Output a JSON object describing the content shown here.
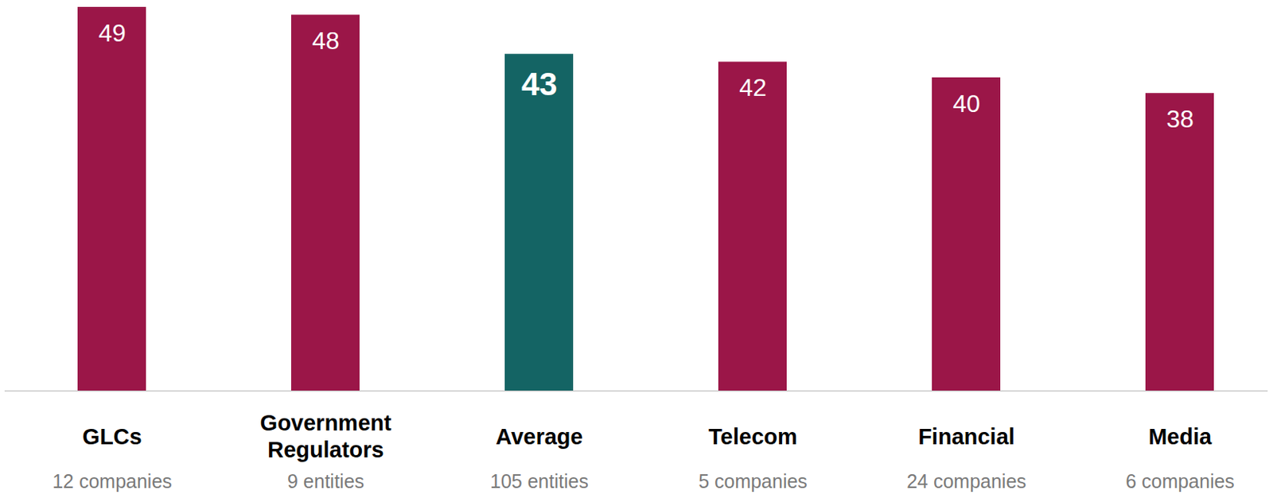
{
  "chart_data": {
    "type": "bar",
    "categories": [
      "GLCs",
      "Government Regulators",
      "Average",
      "Telecom",
      "Financial",
      "Media"
    ],
    "values": [
      49,
      48,
      43,
      42,
      40,
      38
    ],
    "category_notes": [
      "12 companies",
      "9 entities",
      "105 entities",
      "5 companies",
      "24 companies",
      "6 companies"
    ],
    "colors": [
      "#9b1648",
      "#9b1648",
      "#146464",
      "#9b1648",
      "#9b1648",
      "#9b1648"
    ],
    "ylim": [
      0,
      49
    ],
    "data_labels": true,
    "tick_labels": "x",
    "grid": false
  }
}
